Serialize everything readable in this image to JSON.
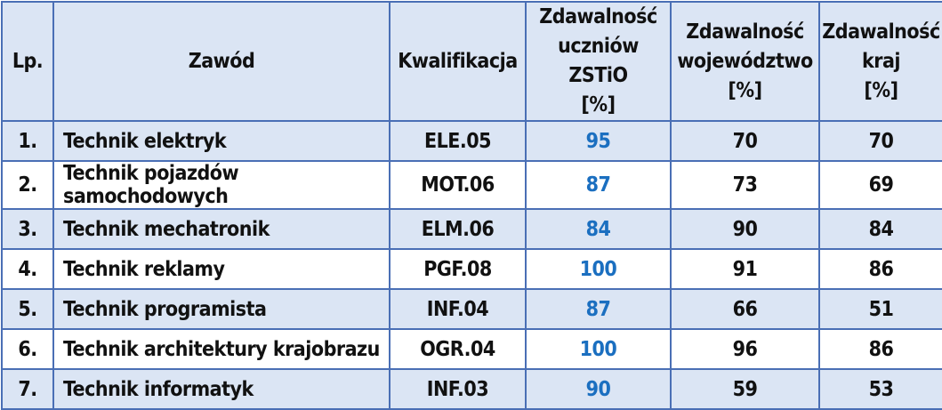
{
  "headers": {
    "lp": "Lp.",
    "zawod": "Zawód",
    "kwalifikacja": "Kwalifikacja",
    "zstio": [
      "Zdawalność",
      "uczniów ZSTiO",
      "[%]"
    ],
    "wojewodztwo": [
      "Zdawalność",
      "województwo",
      "[%]"
    ],
    "kraj": [
      "Zdawalność",
      "kraj",
      "[%]"
    ]
  },
  "rows": [
    {
      "lp": "1.",
      "zawod": "Technik elektryk",
      "kwalifikacja": "ELE.05",
      "zstio": "95",
      "wojewodztwo": "70",
      "kraj": "70"
    },
    {
      "lp": "2.",
      "zawod": "Technik pojazdów samochodowych",
      "kwalifikacja": "MOT.06",
      "zstio": "87",
      "wojewodztwo": "73",
      "kraj": "69"
    },
    {
      "lp": "3.",
      "zawod": "Technik mechatronik",
      "kwalifikacja": "ELM.06",
      "zstio": "84",
      "wojewodztwo": "90",
      "kraj": "84"
    },
    {
      "lp": "4.",
      "zawod": "Technik reklamy",
      "kwalifikacja": "PGF.08",
      "zstio": "100",
      "wojewodztwo": "91",
      "kraj": "86"
    },
    {
      "lp": "5.",
      "zawod": "Technik programista",
      "kwalifikacja": "INF.04",
      "zstio": "87",
      "wojewodztwo": "66",
      "kraj": "51"
    },
    {
      "lp": "6.",
      "zawod": "Technik architektury krajobrazu",
      "kwalifikacja": "OGR.04",
      "zstio": "100",
      "wojewodztwo": "96",
      "kraj": "86"
    },
    {
      "lp": "7.",
      "zawod": "Technik informatyk",
      "kwalifikacja": "INF.03",
      "zstio": "90",
      "wojewodztwo": "59",
      "kraj": "53"
    }
  ],
  "colors": {
    "border": "#4a6fb5",
    "stripe": "#dbe5f4",
    "school_value": "#1b6fc0"
  }
}
